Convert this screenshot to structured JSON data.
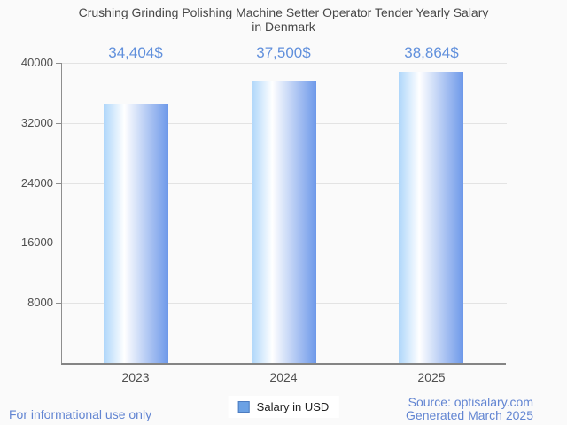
{
  "title": {
    "lines": [
      "Crushing Grinding Polishing Machine Setter Operator Tender Yearly Salary",
      "in Denmark"
    ]
  },
  "chart_data": {
    "type": "bar",
    "title": "Crushing Grinding Polishing Machine Setter Operator Tender Yearly Salary in Denmark",
    "categories": [
      "2023",
      "2024",
      "2025"
    ],
    "series": [
      {
        "name": "Salary in USD",
        "values": [
          34404,
          37500,
          38864
        ]
      }
    ],
    "values": [
      34404,
      37500,
      38864
    ],
    "value_labels": [
      "34,404$",
      "37,500$",
      "38,864$"
    ],
    "xlabel": "",
    "ylabel": "",
    "ylim": [
      0,
      40000
    ],
    "y_ticks": [
      8000,
      16000,
      24000,
      32000,
      40000
    ],
    "y_tick_labels": [
      "8000",
      "16000",
      "24000",
      "32000",
      "40000"
    ],
    "grid": true,
    "legend_position": "bottom",
    "colors": {
      "bar_gradient_left": "#aed6fa",
      "bar_gradient_mid": "#ffffff",
      "bar_gradient_right": "#6d98e9",
      "value_label": "#6190dc",
      "axis_text": "#4f4f4f",
      "grid_line": "#e3e3e3",
      "axis_line": "#848484"
    }
  },
  "legend": {
    "label": "Salary in USD",
    "swatch_fill": "#6ba1e4",
    "swatch_border": "#4d7cc0"
  },
  "footer": {
    "disclaimer": "For informational use only",
    "source": "Source: optisalary.com",
    "generated": "Generated March 2025",
    "link_color": "#6285d2"
  }
}
